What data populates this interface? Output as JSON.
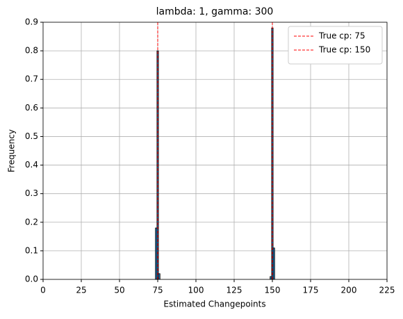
{
  "chart_data": {
    "type": "histogram",
    "title": "lambda: 1, gamma: 300",
    "xlabel": "Estimated Changepoints",
    "ylabel": "Frequency",
    "bins": [
      73.5,
      74.5,
      75.5,
      76.5,
      77.5,
      78.5,
      79.5,
      80.5,
      81.5,
      82.5,
      83.5,
      84.5,
      85.5,
      86.5,
      87.5,
      88.5,
      89.5,
      90.5,
      91.5,
      92.5,
      93.5,
      94.5,
      95.5,
      96.5,
      97.5,
      98.5,
      99.5,
      100.5,
      101.5,
      102.5,
      103.5,
      104.5,
      105.5,
      106.5,
      107.5,
      108.5,
      109.5,
      110.5,
      111.5,
      112.5,
      113.5,
      114.5,
      115.5,
      116.5,
      117.5,
      118.5,
      119.5,
      120.5,
      121.5,
      122.5,
      123.5,
      124.5,
      125.5,
      126.5,
      127.5,
      128.5,
      129.5,
      130.5,
      131.5,
      132.5,
      133.5,
      134.5,
      135.5,
      136.5,
      137.5,
      138.5,
      139.5,
      140.5,
      141.5,
      142.5,
      143.5,
      144.5,
      145.5,
      146.5,
      147.5,
      148.5,
      149.5,
      150.5,
      151.5
    ],
    "values": [
      0.18,
      0.8,
      0.02,
      0,
      0,
      0,
      0,
      0,
      0,
      0,
      0,
      0,
      0,
      0,
      0,
      0,
      0,
      0,
      0,
      0,
      0,
      0,
      0,
      0,
      0,
      0,
      0,
      0,
      0,
      0,
      0,
      0,
      0,
      0,
      0,
      0,
      0,
      0,
      0,
      0,
      0,
      0,
      0,
      0,
      0,
      0,
      0,
      0,
      0,
      0,
      0,
      0,
      0,
      0,
      0,
      0,
      0,
      0,
      0,
      0,
      0,
      0,
      0,
      0,
      0,
      0,
      0,
      0,
      0,
      0,
      0,
      0,
      0,
      0,
      0,
      0.01,
      0.88,
      0.11
    ],
    "color": "#1f77b4",
    "edgecolor": "#000000",
    "vlines": [
      {
        "name": "True cp: 75",
        "value": 75,
        "color": "#ff0000"
      },
      {
        "name": "True cp: 150",
        "value": 150,
        "color": "#ff0000"
      }
    ],
    "xlim": [
      0,
      225
    ],
    "xticks": [
      0,
      25,
      50,
      75,
      100,
      125,
      150,
      175,
      200,
      225
    ],
    "ylim": [
      0,
      0.9
    ],
    "yticks": [
      {
        "value": 0,
        "label": "0.0"
      },
      0.1,
      0.2,
      0.3,
      0.4,
      0.5,
      0.6,
      0.7,
      0.8,
      0.9
    ],
    "grid": true,
    "legend": "upper right"
  }
}
